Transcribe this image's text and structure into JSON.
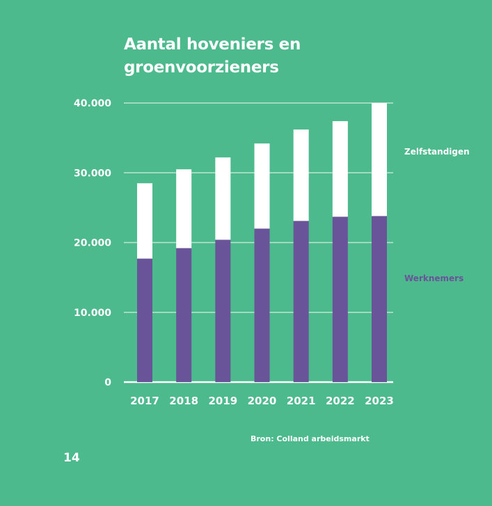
{
  "colors": {
    "background": "#4cba8c",
    "werknemers": "#6a5499",
    "zelfstandigen": "#ffffff",
    "gridline": "#b9e6d0"
  },
  "page_number": "14",
  "source": "Bron: Colland arbeidsmarkt",
  "chart_data": {
    "type": "bar",
    "stacked": true,
    "title_lines": [
      "Aantal hoveniers en",
      "groenvoorzieners"
    ],
    "categories": [
      "2017",
      "2018",
      "2019",
      "2020",
      "2021",
      "2022",
      "2023"
    ],
    "series": [
      {
        "name": "Werknemers",
        "values": [
          17700,
          19200,
          20400,
          22000,
          23100,
          23700,
          23800
        ]
      },
      {
        "name": "Zelfstandigen",
        "values": [
          10800,
          11300,
          11800,
          12200,
          13100,
          13700,
          16200
        ]
      }
    ],
    "yticks": [
      "0",
      "10.000",
      "20.000",
      "30.000",
      "40.000"
    ],
    "ylim": [
      0,
      40000
    ],
    "grid": true,
    "legend_placement": "right"
  }
}
